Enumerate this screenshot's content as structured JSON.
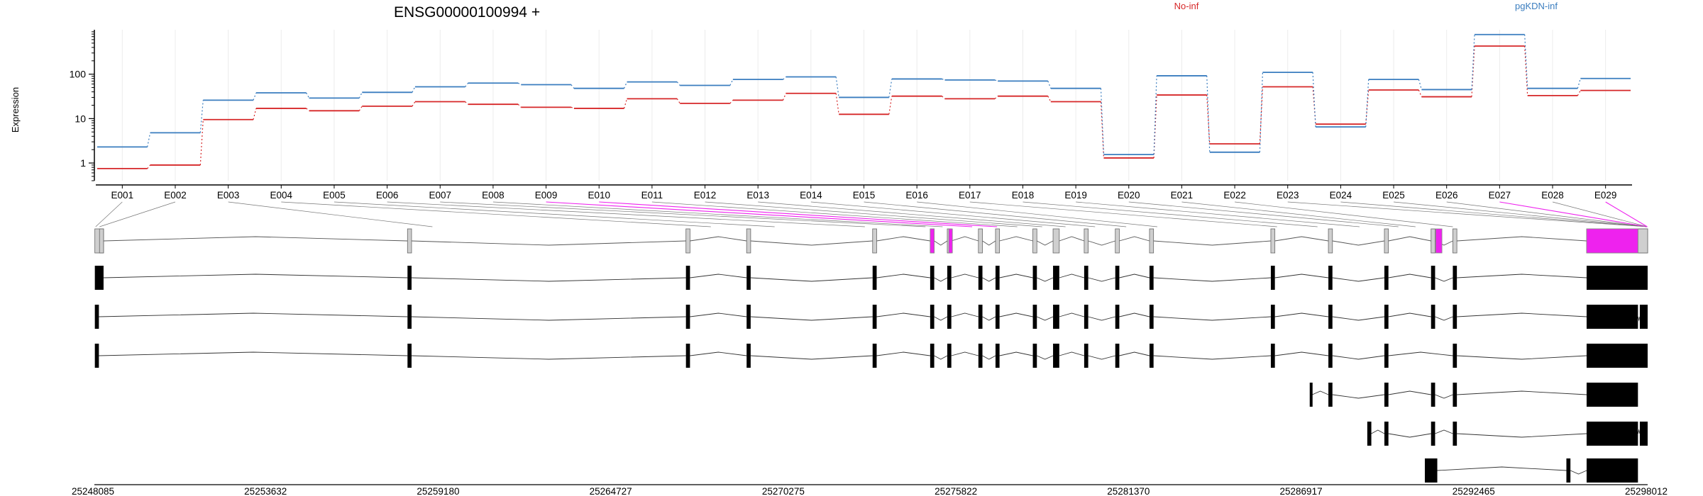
{
  "chart_data": {
    "type": "line",
    "title": "ENSG00000100994 +",
    "ylabel": "Expression",
    "yscale": "log",
    "ylim": [
      0.4,
      1000
    ],
    "ytick_labels": [
      "1",
      "10",
      "100"
    ],
    "ytick_values": [
      1,
      10,
      100
    ],
    "categories": [
      "E001",
      "E002",
      "E003",
      "E004",
      "E005",
      "E006",
      "E007",
      "E008",
      "E009",
      "E010",
      "E011",
      "E012",
      "E013",
      "E014",
      "E015",
      "E016",
      "E017",
      "E018",
      "E019",
      "E020",
      "E021",
      "E022",
      "E023",
      "E024",
      "E025",
      "E026",
      "E027",
      "E028",
      "E029"
    ],
    "series": [
      {
        "name": "No-inf",
        "color": "#d62728",
        "values": [
          0.75,
          0.9,
          9.5,
          17,
          15,
          19,
          24,
          21,
          18,
          17,
          28,
          22,
          26,
          37,
          12.5,
          32,
          28,
          32,
          24,
          1.3,
          34,
          2.7,
          52,
          7.5,
          44,
          31,
          430,
          33,
          43
        ]
      },
      {
        "name": "pgKDN-inf",
        "color": "#3a7dbf",
        "values": [
          2.3,
          4.8,
          26,
          38,
          29,
          39,
          52,
          63,
          58,
          48,
          67,
          56,
          76,
          87,
          30,
          78,
          74,
          70,
          48,
          1.55,
          92,
          1.75,
          110,
          6.5,
          76,
          45,
          780,
          48,
          80
        ]
      }
    ],
    "genome_axis": {
      "range": [
        25248085,
        25298012
      ],
      "tick_labels": [
        "25248085",
        "25253632",
        "25259180",
        "25264727",
        "25270275",
        "25275822",
        "25281370",
        "25286917",
        "25292465",
        "25298012"
      ]
    },
    "exon_genomic_positions": [
      25248125,
      25248250,
      25258950,
      25267900,
      25269950,
      25272850,
      25274800,
      25275350,
      25276300,
      25277100,
      25277750,
      25278550,
      25279300,
      25280250,
      25281250,
      25282250,
      25286100,
      25287400,
      25288750,
      25290000,
      25290550,
      25291750,
      25298000,
      25298000,
      25298000,
      25298000,
      25298000,
      25298000,
      25298000
    ],
    "highlight_color": "#ee22ee",
    "highlighted_exons": [
      "E009",
      "E010",
      "E027",
      "E029"
    ],
    "transcripts": [
      {
        "start": 25248085,
        "end": 25298012,
        "exons": [
          [
            25248100,
            25248380
          ],
          [
            25258150,
            25258280
          ],
          [
            25267100,
            25267230
          ],
          [
            25269050,
            25269180
          ],
          [
            25273100,
            25273230
          ],
          [
            25274950,
            25275080
          ],
          [
            25275500,
            25275630
          ],
          [
            25276500,
            25276630
          ],
          [
            25277050,
            25277180
          ],
          [
            25278250,
            25278380
          ],
          [
            25278900,
            25279100
          ],
          [
            25279900,
            25280030
          ],
          [
            25280900,
            25281030
          ],
          [
            25282000,
            25282130
          ],
          [
            25285900,
            25286030
          ],
          [
            25287750,
            25287880
          ],
          [
            25289550,
            25289680
          ],
          [
            25291050,
            25291180
          ],
          [
            25291750,
            25291880
          ],
          [
            25296050,
            25298012
          ]
        ]
      },
      {
        "start": 25248085,
        "end": 25298012,
        "exons": [
          [
            25248100,
            25248230
          ],
          [
            25258150,
            25258280
          ],
          [
            25267100,
            25267230
          ],
          [
            25269050,
            25269180
          ],
          [
            25273100,
            25273230
          ],
          [
            25274950,
            25275080
          ],
          [
            25275500,
            25275630
          ],
          [
            25276500,
            25276630
          ],
          [
            25277050,
            25277180
          ],
          [
            25278250,
            25278380
          ],
          [
            25278900,
            25279100
          ],
          [
            25279900,
            25280030
          ],
          [
            25280900,
            25281030
          ],
          [
            25282000,
            25282130
          ],
          [
            25285900,
            25286030
          ],
          [
            25287750,
            25287880
          ],
          [
            25289550,
            25289680
          ],
          [
            25291050,
            25291180
          ],
          [
            25291750,
            25291880
          ],
          [
            25296050,
            25297700
          ],
          [
            25297760,
            25298012
          ]
        ]
      },
      {
        "start": 25248085,
        "end": 25298012,
        "exons": [
          [
            25248100,
            25248230
          ],
          [
            25258150,
            25258280
          ],
          [
            25267100,
            25267230
          ],
          [
            25269050,
            25269180
          ],
          [
            25273100,
            25273230
          ],
          [
            25274950,
            25275080
          ],
          [
            25275500,
            25275630
          ],
          [
            25276500,
            25276630
          ],
          [
            25277050,
            25277180
          ],
          [
            25278250,
            25278380
          ],
          [
            25278900,
            25279100
          ],
          [
            25279900,
            25280030
          ],
          [
            25280900,
            25281030
          ],
          [
            25282000,
            25282130
          ],
          [
            25285900,
            25286030
          ],
          [
            25287750,
            25287880
          ],
          [
            25289550,
            25289680
          ],
          [
            25291750,
            25291880
          ],
          [
            25296050,
            25298012
          ]
        ]
      },
      {
        "start": 25287150,
        "end": 25297700,
        "exons": [
          [
            25287150,
            25287230
          ],
          [
            25287750,
            25287880
          ],
          [
            25289550,
            25289680
          ],
          [
            25291050,
            25291180
          ],
          [
            25291750,
            25291880
          ],
          [
            25296050,
            25297700
          ]
        ]
      },
      {
        "start": 25289000,
        "end": 25298012,
        "exons": [
          [
            25289000,
            25289130
          ],
          [
            25289550,
            25289680
          ],
          [
            25291050,
            25291180
          ],
          [
            25291750,
            25291880
          ],
          [
            25296050,
            25297700
          ],
          [
            25297760,
            25298012
          ]
        ]
      },
      {
        "start": 25290850,
        "end": 25297700,
        "exons": [
          [
            25290850,
            25291250
          ],
          [
            25295400,
            25295530
          ],
          [
            25296050,
            25297700
          ]
        ]
      }
    ]
  }
}
